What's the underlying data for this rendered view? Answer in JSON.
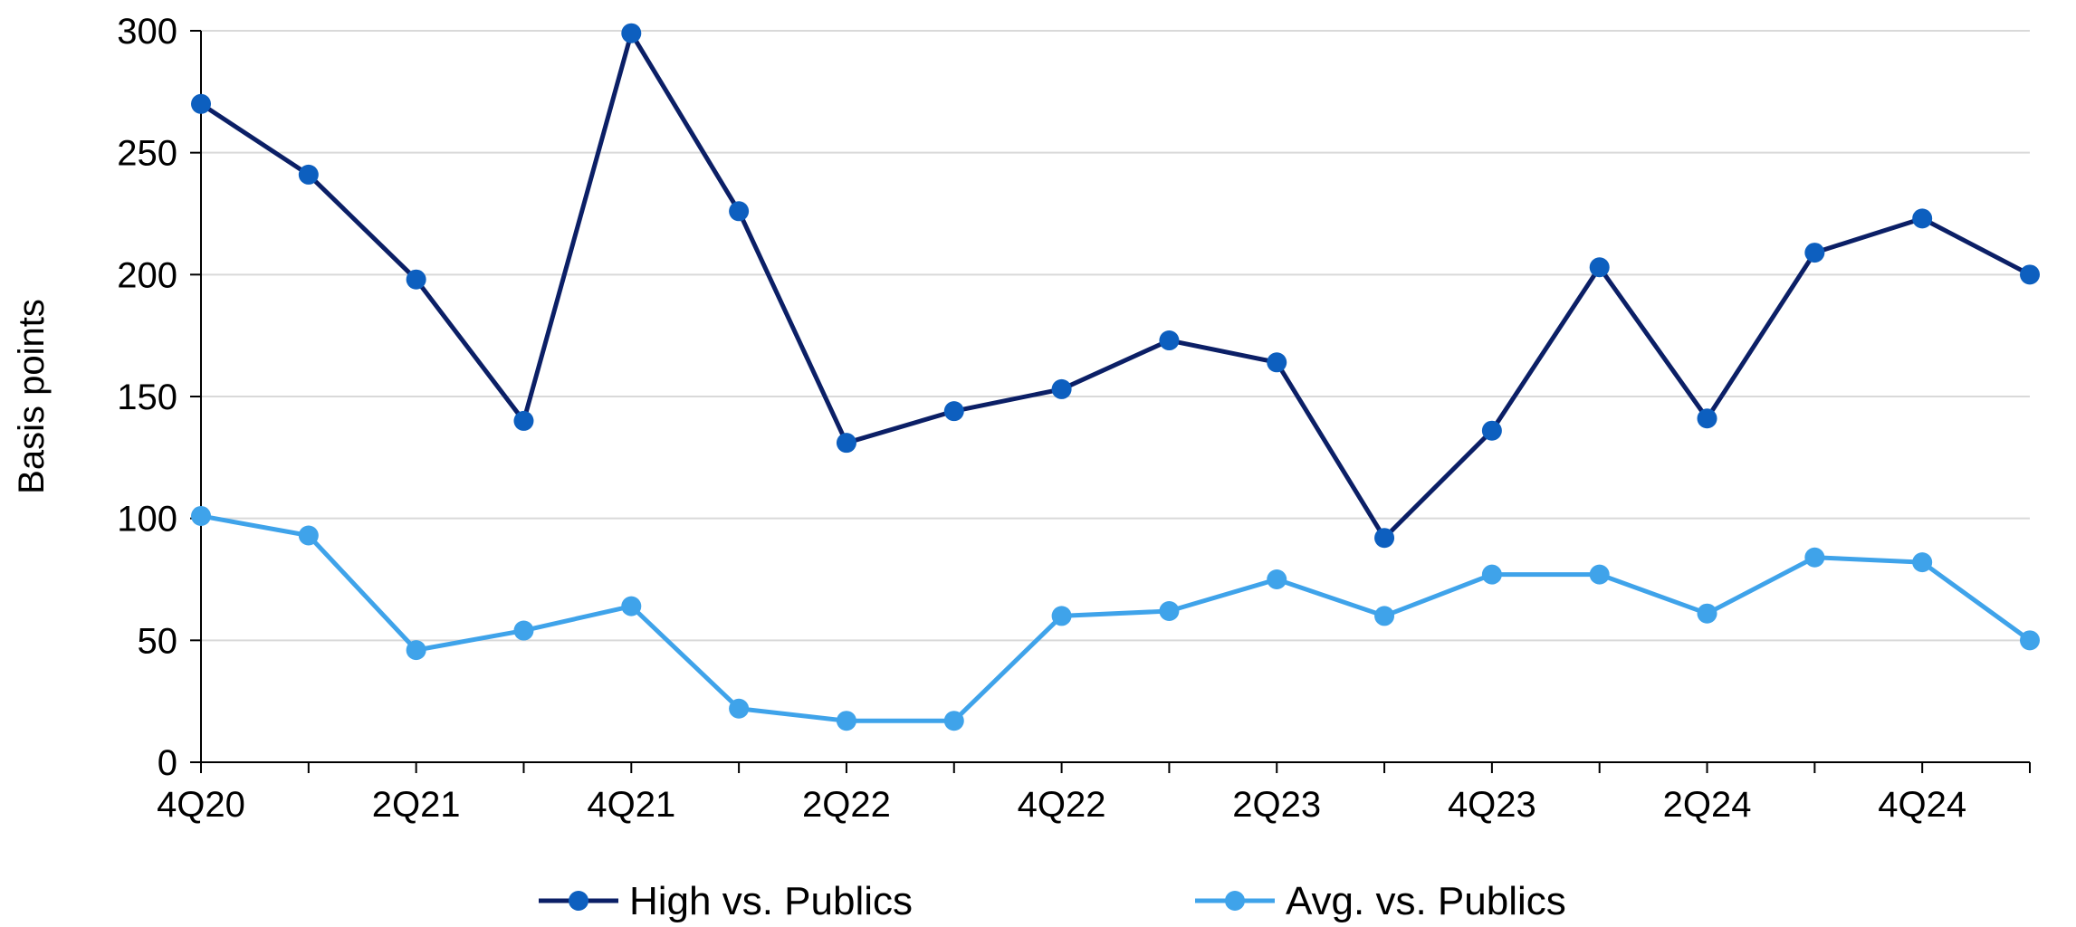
{
  "chart_data": {
    "type": "line",
    "x": [
      "4Q20",
      "1Q21",
      "2Q21",
      "3Q21",
      "4Q21",
      "1Q22",
      "2Q22",
      "3Q22",
      "4Q22",
      "1Q23",
      "2Q23",
      "3Q23",
      "4Q23",
      "1Q24",
      "2Q24",
      "3Q24",
      "4Q24",
      "1Q25"
    ],
    "x_tick_labels": [
      "4Q20",
      "",
      "2Q21",
      "",
      "4Q21",
      "",
      "2Q22",
      "",
      "4Q22",
      "",
      "2Q23",
      "",
      "4Q23",
      "",
      "2Q24",
      "",
      "4Q24",
      ""
    ],
    "series": [
      {
        "name": "High vs. Publics",
        "color": "#0b1f66",
        "marker_color": "#0d5fbf",
        "values": [
          270,
          241,
          198,
          140,
          299,
          226,
          131,
          144,
          153,
          173,
          164,
          92,
          136,
          203,
          141,
          209,
          223,
          200
        ]
      },
      {
        "name": "Avg. vs. Publics",
        "color": "#3fa3ea",
        "marker_color": "#3fa3ea",
        "values": [
          101,
          93,
          46,
          54,
          64,
          22,
          17,
          17,
          60,
          62,
          75,
          60,
          77,
          77,
          61,
          84,
          82,
          50
        ]
      }
    ],
    "title": "",
    "xlabel": "",
    "ylabel": "Basis points",
    "ylim": [
      0,
      300
    ],
    "yticks": [
      0,
      50,
      100,
      150,
      200,
      250,
      300
    ],
    "grid": true,
    "legend_position": "bottom"
  }
}
